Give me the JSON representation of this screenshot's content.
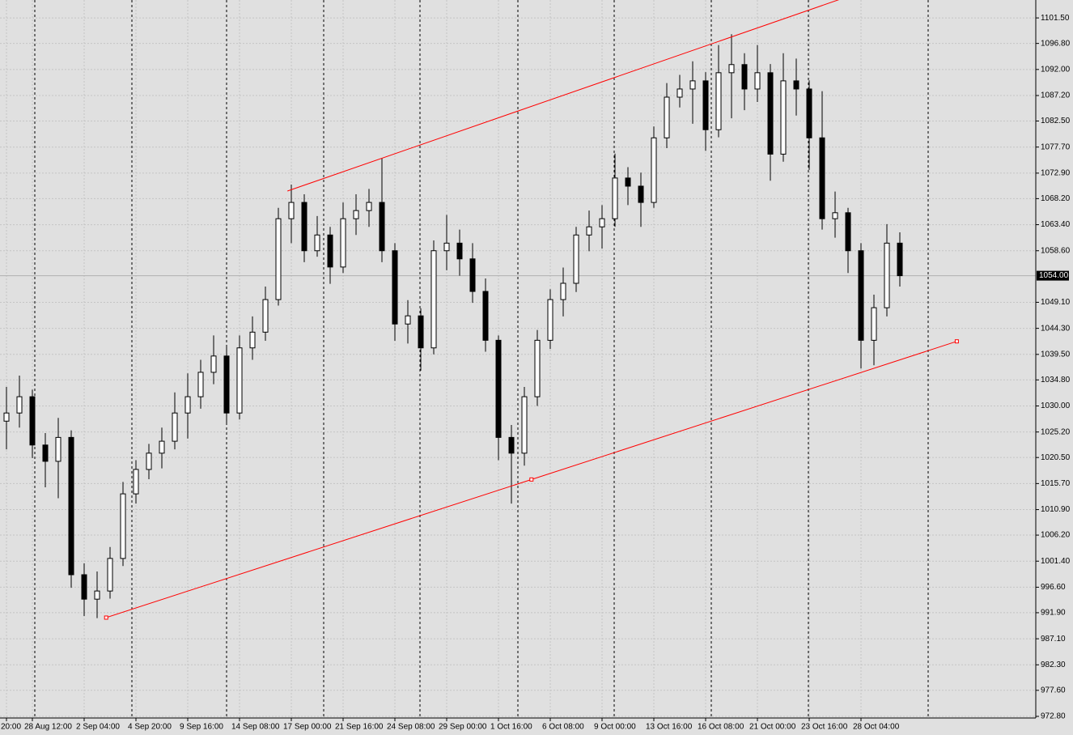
{
  "chart_data": {
    "type": "candlestick",
    "categories": [
      "20:00",
      null,
      "28 Aug 12:00",
      null,
      null,
      null,
      "2 Sep 04:00",
      null,
      null,
      null,
      "4 Sep 20:00",
      null,
      null,
      null,
      "9 Sep 16:00",
      null,
      null,
      null,
      "14 Sep 08:00",
      null,
      null,
      null,
      "17 Sep 00:00",
      null,
      null,
      null,
      "21 Sep 16:00",
      null,
      null,
      null,
      "24 Sep 08:00",
      null,
      null,
      null,
      "29 Sep 00:00",
      null,
      null,
      null,
      "1 Oct 16:00",
      null,
      null,
      null,
      "6 Oct 08:00",
      null,
      null,
      null,
      "9 Oct 00:00",
      null,
      null,
      null,
      "13 Oct 16:00",
      null,
      null,
      null,
      "16 Oct 08:00",
      null,
      null,
      null,
      "21 Oct 00:00",
      null,
      null,
      null,
      "23 Oct 16:00",
      null,
      null,
      null,
      "28 Oct 04:00",
      null,
      null,
      null
    ],
    "open": [
      1027.2,
      1028.7,
      1031.7,
      1022.8,
      1019.8,
      1024.2,
      998.9,
      994.4,
      995.9,
      1001.9,
      1013.8,
      1018.3,
      1021.3,
      1023.5,
      1028.7,
      1031.7,
      1036.2,
      1039.2,
      1028.7,
      1040.7,
      1043.6,
      1049.6,
      1064.5,
      1067.5,
      1058.6,
      1061.5,
      1055.6,
      1064.5,
      1066.0,
      1067.5,
      1058.6,
      1045.1,
      1046.6,
      1040.7,
      1058.6,
      1060.0,
      1057.1,
      1051.1,
      1042.1,
      1024.2,
      1021.3,
      1031.7,
      1042.1,
      1049.6,
      1052.6,
      1061.5,
      1063.0,
      1064.5,
      1072.0,
      1070.5,
      1067.5,
      1079.4,
      1086.9,
      1088.4,
      1089.9,
      1080.9,
      1091.4,
      1092.9,
      1088.4,
      1091.4,
      1076.4,
      1089.9,
      1088.4,
      1079.4,
      1064.5,
      1065.6,
      1058.6,
      1042.1,
      1048.1,
      1060.0
    ],
    "high": [
      1033.5,
      1035.6,
      1033.0,
      1025.0,
      1027.8,
      1025.5,
      1001.0,
      999.5,
      1004.0,
      1016.0,
      1020.0,
      1023.0,
      1026.0,
      1032.5,
      1036.0,
      1038.5,
      1043.0,
      1041.0,
      1043.0,
      1046.5,
      1052.0,
      1066.5,
      1070.8,
      1069.0,
      1065.0,
      1063.0,
      1067.5,
      1069.0,
      1070.0,
      1075.7,
      1060.0,
      1049.5,
      1048.0,
      1060.5,
      1065.2,
      1062.5,
      1060.0,
      1053.5,
      1043.0,
      1026.5,
      1033.5,
      1044.0,
      1051.5,
      1055.5,
      1063.0,
      1066.0,
      1067.0,
      1076.5,
      1074.0,
      1073.0,
      1081.5,
      1089.5,
      1091.0,
      1093.5,
      1091.5,
      1096.5,
      1098.5,
      1095.0,
      1096.5,
      1093.0,
      1095.0,
      1094.0,
      1090.0,
      1088.0,
      1069.5,
      1066.5,
      1060.0,
      1050.5,
      1063.5,
      1062.0
    ],
    "low": [
      1022.0,
      1026.0,
      1020.4,
      1015.0,
      1013.0,
      996.5,
      991.3,
      990.9,
      994.5,
      1000.5,
      1012.0,
      1016.5,
      1018.5,
      1022.0,
      1024.0,
      1029.5,
      1034.0,
      1026.5,
      1027.5,
      1038.5,
      1042.0,
      1048.5,
      1060.0,
      1056.5,
      1057.5,
      1052.5,
      1054.5,
      1061.5,
      1063.0,
      1056.5,
      1042.0,
      1041.5,
      1036.5,
      1039.5,
      1055.0,
      1054.0,
      1049.0,
      1040.0,
      1020.0,
      1012.0,
      1019.0,
      1030.0,
      1040.5,
      1046.5,
      1051.0,
      1058.5,
      1059.0,
      1063.0,
      1067.0,
      1063.0,
      1066.5,
      1077.5,
      1085.0,
      1082.0,
      1077.0,
      1079.5,
      1083.0,
      1084.5,
      1086.0,
      1071.5,
      1075.0,
      1083.5,
      1073.5,
      1062.5,
      1061.0,
      1054.5,
      1036.9,
      1037.5,
      1046.5,
      1052.0
    ],
    "close": [
      1028.7,
      1031.7,
      1022.8,
      1019.8,
      1024.2,
      998.9,
      994.4,
      995.9,
      1001.9,
      1013.8,
      1018.3,
      1021.3,
      1023.5,
      1028.7,
      1031.7,
      1036.2,
      1039.2,
      1028.7,
      1040.7,
      1043.6,
      1049.6,
      1064.5,
      1067.5,
      1058.6,
      1061.5,
      1055.6,
      1064.5,
      1066.0,
      1067.5,
      1058.6,
      1045.1,
      1046.6,
      1040.7,
      1058.6,
      1060.0,
      1057.1,
      1051.1,
      1042.1,
      1024.2,
      1021.3,
      1031.7,
      1042.1,
      1049.6,
      1052.6,
      1061.5,
      1063.0,
      1064.5,
      1072.0,
      1070.5,
      1067.5,
      1079.4,
      1086.9,
      1088.4,
      1089.9,
      1080.9,
      1091.4,
      1092.9,
      1088.4,
      1091.4,
      1076.4,
      1089.9,
      1088.4,
      1079.4,
      1064.5,
      1065.6,
      1058.6,
      1042.1,
      1048.1,
      1060.0,
      1054.0
    ],
    "up_color": "#ffffff",
    "down_color": "#000000",
    "wick_color": "#000000",
    "ylim": [
      972.5,
      1104.8
    ],
    "yticks": [
      {
        "value": 1101.5,
        "label": "1101.50"
      },
      {
        "value": 1096.8,
        "label": "1096.80"
      },
      {
        "value": 1092.0,
        "label": "1092.00"
      },
      {
        "value": 1087.2,
        "label": "1087.20"
      },
      {
        "value": 1082.5,
        "label": "1082.50"
      },
      {
        "value": 1077.7,
        "label": "1077.70"
      },
      {
        "value": 1072.9,
        "label": "1072.90"
      },
      {
        "value": 1068.2,
        "label": "1068.20"
      },
      {
        "value": 1063.4,
        "label": "1063.40"
      },
      {
        "value": 1058.6,
        "label": "1058.60"
      },
      {
        "value": 1049.1,
        "label": "1049.10"
      },
      {
        "value": 1044.3,
        "label": "1044.30"
      },
      {
        "value": 1039.5,
        "label": "1039.50"
      },
      {
        "value": 1034.8,
        "label": "1034.80"
      },
      {
        "value": 1030.0,
        "label": "1030.00"
      },
      {
        "value": 1025.2,
        "label": "1025.20"
      },
      {
        "value": 1020.5,
        "label": "1020.50"
      },
      {
        "value": 1015.7,
        "label": "1015.70"
      },
      {
        "value": 1010.9,
        "label": "1010.90"
      },
      {
        "value": 1006.2,
        "label": "1006.20"
      },
      {
        "value": 1001.4,
        "label": "1001.40"
      },
      {
        "value": 996.6,
        "label": "996.60"
      },
      {
        "value": 991.9,
        "label": "991.90"
      },
      {
        "value": 987.1,
        "label": "987.10"
      },
      {
        "value": 982.3,
        "label": "982.30"
      },
      {
        "value": 977.6,
        "label": "977.60"
      },
      {
        "value": 972.8,
        "label": "972.80"
      }
    ],
    "grid": true,
    "current_price": {
      "value": 1054.0,
      "label": "1054.00"
    },
    "trendlines": [
      {
        "x": [
          21.7,
          73.4
        ],
        "y": [
          1069.6,
          1112.4
        ],
        "color": "#ff0000",
        "anchors": false
      },
      {
        "x": [
          7.7,
          73.4
        ],
        "y": [
          991.0,
          1041.9
        ],
        "color": "#ff0000",
        "anchors": true
      }
    ]
  }
}
